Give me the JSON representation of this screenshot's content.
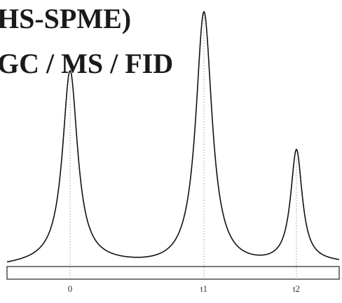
{
  "title_lines": [
    "HS-SPME)",
    "GC / MS / FID"
  ],
  "chart_data": {
    "type": "line",
    "title": "HS-SPME) GC / MS / FID",
    "xlabel": "",
    "ylabel": "",
    "grid": false,
    "x_ticks": [
      "0",
      "t1",
      "t2"
    ],
    "peaks": [
      {
        "label": "0",
        "height": 0.75
      },
      {
        "label": "t1",
        "height": 1.0
      },
      {
        "label": "t2",
        "height": 0.44
      }
    ],
    "line_color": "#111111"
  }
}
